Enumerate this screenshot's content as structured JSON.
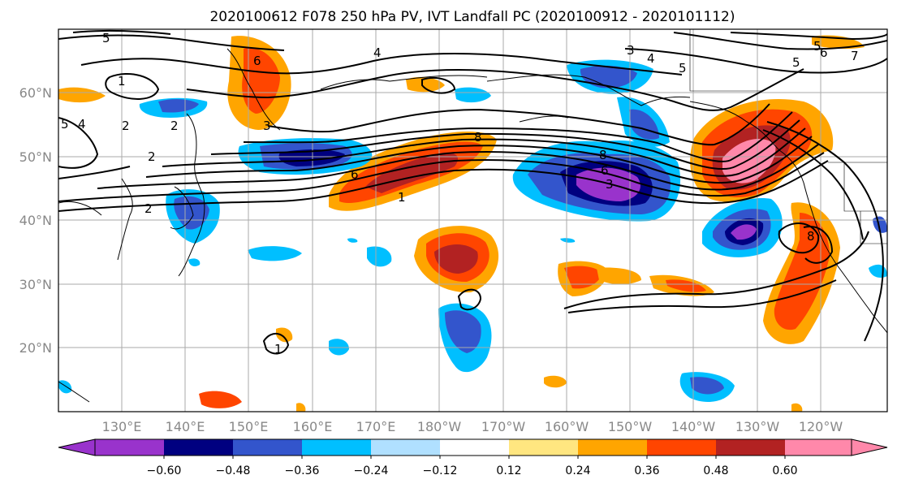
{
  "title": "2020100612 F078 250 hPa PV, IVT Landfall PC (2020100912 - 2020101112)",
  "lat_labels": [
    "60°N",
    "50°N",
    "40°N",
    "30°N",
    "20°N"
  ],
  "lon_labels": [
    "130°E",
    "140°E",
    "150°E",
    "160°E",
    "170°E",
    "180°W",
    "170°W",
    "160°W",
    "150°W",
    "140°W",
    "130°W",
    "120°W"
  ],
  "colorbar": {
    "ticks": [
      "−0.60",
      "−0.48",
      "−0.36",
      "−0.24",
      "−0.12",
      "0.12",
      "0.24",
      "0.36",
      "0.48",
      "0.60"
    ],
    "colors": [
      "#9933cc",
      "#000080",
      "#3355cc",
      "#00bfff",
      "#b0e0ff",
      "#ffffff",
      "#ffe680",
      "#ffa500",
      "#ff4500",
      "#b22222",
      "#ff88aa"
    ]
  },
  "colors": {
    "contour": "#000000",
    "coast": "#000000",
    "grid": "#aaaaaa",
    "neg_strong": "#9933cc",
    "neg_navy": "#000080",
    "neg_blue": "#3355cc",
    "neg_cyan": "#00bfff",
    "pos_yellow": "#ffe680",
    "pos_orange": "#ffa500",
    "pos_red": "#ff4500",
    "pos_darkred": "#b22222",
    "pos_pink": "#ff88aa"
  },
  "contour_labels": [
    "5",
    "6",
    "4",
    "2",
    "1",
    "3",
    "4",
    "5",
    "6",
    "5",
    "8",
    "6",
    "3",
    "5",
    "8",
    "2",
    "4",
    "2",
    "3",
    "2",
    "1",
    "1",
    "5",
    "6",
    "7",
    "8"
  ]
}
